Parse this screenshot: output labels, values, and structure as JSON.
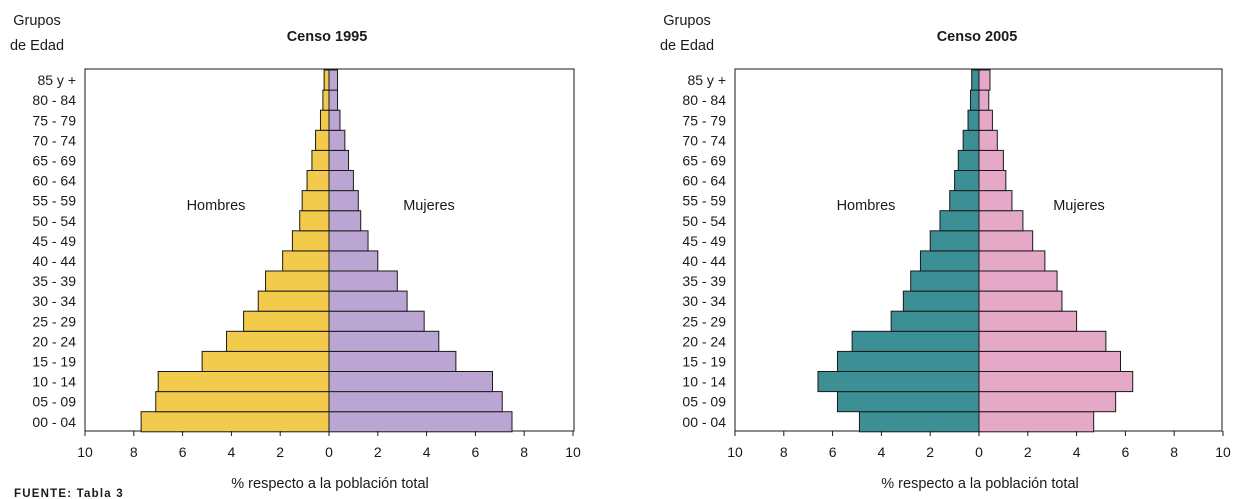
{
  "source": "FUENTE: Tabla 3",
  "colors": {
    "hombres_1995": "#f2ca4c",
    "mujeres_1995": "#bba6d3",
    "hombres_2005": "#3d8f96",
    "mujeres_2005": "#e5a8c6",
    "outline": "#1a1a1a"
  },
  "chart_data": [
    {
      "type": "bar",
      "subtype": "population-pyramid",
      "title": "Censo 1995",
      "ylabel": "Grupos de Edad",
      "xlabel": "% respecto a la población total",
      "xlim": [
        -10,
        10
      ],
      "x_ticks": [
        10,
        8,
        6,
        4,
        2,
        0,
        2,
        4,
        6,
        8,
        10
      ],
      "left_label": "Hombres",
      "right_label": "Mujeres",
      "categories": [
        "00 - 04",
        "05 - 09",
        "10 - 14",
        "15 - 19",
        "20 - 24",
        "25 - 29",
        "30 - 34",
        "35 - 39",
        "40 - 44",
        "45 - 49",
        "50 - 54",
        "55 - 59",
        "60 - 64",
        "65 - 69",
        "70 - 74",
        "75 - 79",
        "80 - 84",
        "85 y +"
      ],
      "series": [
        {
          "name": "Hombres",
          "values": [
            7.7,
            7.1,
            7.0,
            5.2,
            4.2,
            3.5,
            2.9,
            2.6,
            1.9,
            1.5,
            1.2,
            1.1,
            0.9,
            0.7,
            0.55,
            0.35,
            0.25,
            0.2
          ]
        },
        {
          "name": "Mujeres",
          "values": [
            7.5,
            7.1,
            6.7,
            5.2,
            4.5,
            3.9,
            3.2,
            2.8,
            2.0,
            1.6,
            1.3,
            1.2,
            1.0,
            0.8,
            0.65,
            0.45,
            0.35,
            0.35
          ]
        }
      ]
    },
    {
      "type": "bar",
      "subtype": "population-pyramid",
      "title": "Censo 2005",
      "ylabel": "Grupos de Edad",
      "xlabel": "% respecto a la población total",
      "xlim": [
        -10,
        10
      ],
      "x_ticks": [
        10,
        8,
        6,
        4,
        2,
        0,
        2,
        4,
        6,
        8,
        10
      ],
      "left_label": "Hombres",
      "right_label": "Mujeres",
      "categories": [
        "00 - 04",
        "05 - 09",
        "10 - 14",
        "15 - 19",
        "20 - 24",
        "25 - 29",
        "30 - 34",
        "35 - 39",
        "40 - 44",
        "45 - 49",
        "50 - 54",
        "55 - 59",
        "60 - 64",
        "65 - 69",
        "70 - 74",
        "75 - 79",
        "80 - 84",
        "85 y +"
      ],
      "series": [
        {
          "name": "Hombres",
          "values": [
            4.9,
            5.8,
            6.6,
            5.8,
            5.2,
            3.6,
            3.1,
            2.8,
            2.4,
            2.0,
            1.6,
            1.2,
            1.0,
            0.85,
            0.65,
            0.45,
            0.35,
            0.3
          ]
        },
        {
          "name": "Mujeres",
          "values": [
            4.7,
            5.6,
            6.3,
            5.8,
            5.2,
            4.0,
            3.4,
            3.2,
            2.7,
            2.2,
            1.8,
            1.35,
            1.1,
            1.0,
            0.75,
            0.55,
            0.4,
            0.45
          ]
        }
      ]
    }
  ]
}
